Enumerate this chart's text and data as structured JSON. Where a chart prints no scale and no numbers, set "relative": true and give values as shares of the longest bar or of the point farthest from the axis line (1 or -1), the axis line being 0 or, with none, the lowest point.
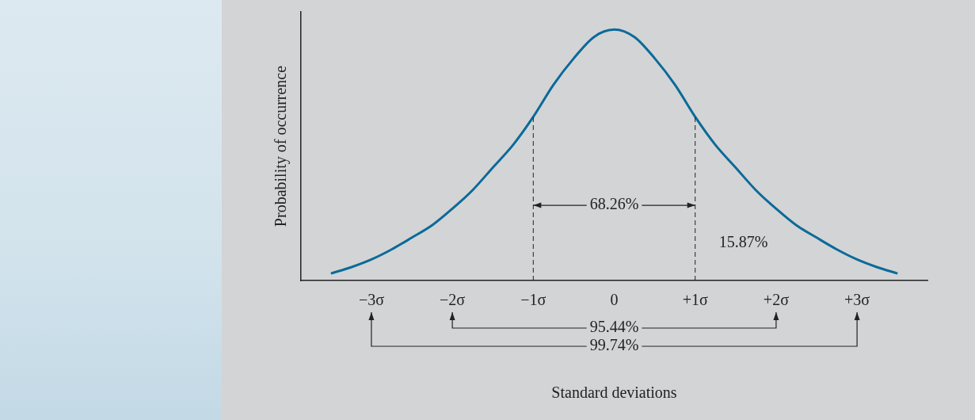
{
  "chart_data": {
    "type": "line",
    "relative": true,
    "ylabel": "Probability of occurrence",
    "x": [
      -3.5,
      -3.25,
      -3,
      -2.75,
      -2.5,
      -2.25,
      -2,
      -1.75,
      -1.5,
      -1.25,
      -1,
      -0.75,
      -0.5,
      -0.25,
      0,
      0.25,
      0.5,
      0.75,
      1,
      1.25,
      1.5,
      1.75,
      2,
      2.25,
      2.5,
      2.75,
      3,
      3.25,
      3.5
    ],
    "series": [
      {
        "color": "#0b6a98",
        "values": [
          0.028,
          0.053,
          0.084,
          0.124,
          0.171,
          0.22,
          0.286,
          0.36,
          0.45,
          0.54,
          0.652,
          0.78,
          0.885,
          0.97,
          1,
          0.97,
          0.885,
          0.78,
          0.652,
          0.54,
          0.45,
          0.36,
          0.286,
          0.22,
          0.171,
          0.124,
          0.084,
          0.053,
          0.028
        ]
      }
    ],
    "xlim": [
      -3.87,
      3.87
    ],
    "xticks": [
      {
        "value": -3,
        "label": "−3σ"
      },
      {
        "value": -2,
        "label": "−2σ"
      },
      {
        "value": -1,
        "label": "−1σ"
      },
      0,
      {
        "value": 1,
        "label": "+1σ"
      },
      {
        "value": 2,
        "label": "+2σ"
      },
      {
        "value": 3,
        "label": "+3σ"
      }
    ],
    "ref_lines": [
      {
        "axis": "x",
        "value": -1,
        "line_style": "dashed",
        "color": "#222222"
      },
      {
        "axis": "x",
        "value": 1,
        "line_style": "dashed",
        "color": "#222222"
      }
    ],
    "annotations": [
      "68.26%",
      "15.87%",
      "95.44%",
      "99.74%",
      "Standard deviations"
    ],
    "grid": false,
    "legend": false,
    "marker": "none",
    "line_style": "solid"
  }
}
